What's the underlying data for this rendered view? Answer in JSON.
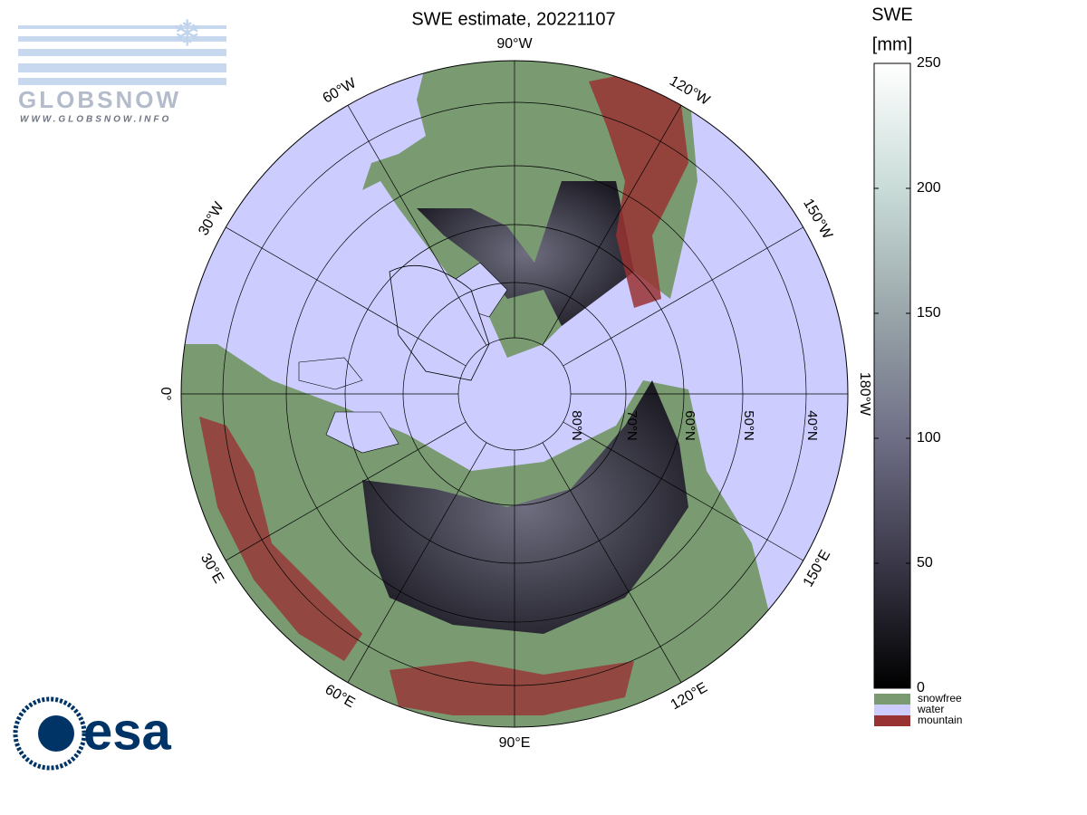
{
  "title": "SWE estimate, 20221107",
  "logos": {
    "globsnow": "GLOBSNOW",
    "globsnow_url": "WWW.GLOBSNOW.INFO",
    "esa": "esa"
  },
  "map": {
    "longitude_labels": [
      "0°",
      "30°E",
      "60°E",
      "90°E",
      "120°E",
      "150°E",
      "180°W",
      "150°W",
      "120°W",
      "90°W",
      "60°W",
      "30°W"
    ],
    "latitude_labels": [
      "80°N",
      "70°N",
      "60°N",
      "50°N",
      "40°N"
    ]
  },
  "colorbar": {
    "title": "SWE",
    "unit": "[mm]",
    "clim": [
      0,
      250
    ],
    "ticks": [
      0,
      50,
      100,
      150,
      200,
      250
    ],
    "colors": [
      "#000000",
      "#3a3848",
      "#6e6e86",
      "#9aa6aa",
      "#c9dcd8",
      "#ffffff"
    ],
    "legend": [
      {
        "name": "snowfree",
        "color": "#7a9a72"
      },
      {
        "name": "water",
        "color": "#ccccff"
      },
      {
        "name": "mountain",
        "color": "#993333"
      }
    ]
  }
}
